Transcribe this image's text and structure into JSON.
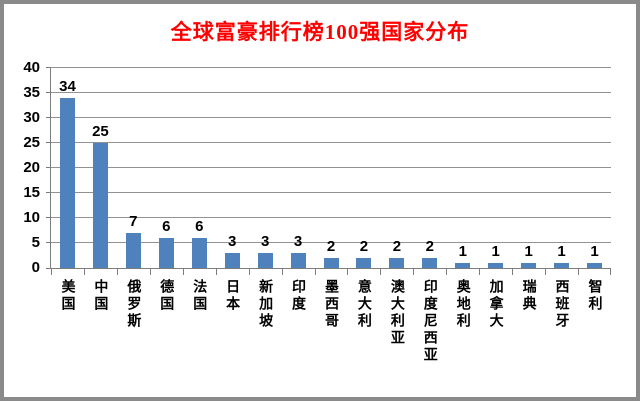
{
  "chart_data": {
    "type": "bar",
    "title": "全球富豪排行榜100强国家分布",
    "title_color": "#FF0000",
    "bar_color": "#4F81BD",
    "categories": [
      "美国",
      "中国",
      "俄罗斯",
      "德国",
      "法国",
      "日本",
      "新加坡",
      "印度",
      "墨西哥",
      "意大利",
      "澳大利亚",
      "印度尼西亚",
      "奥地利",
      "加拿大",
      "瑞典",
      "西班牙",
      "智利"
    ],
    "values": [
      34,
      25,
      7,
      6,
      6,
      3,
      3,
      3,
      2,
      2,
      2,
      2,
      1,
      1,
      1,
      1,
      1
    ],
    "xlabel": "",
    "ylabel": "",
    "ylim": [
      0,
      40
    ],
    "yticks": [
      0,
      5,
      10,
      15,
      20,
      25,
      30,
      35,
      40
    ],
    "grid": true,
    "legend": "none",
    "data_labels": true,
    "frame_color": "#8a8a8a",
    "gridline_color": "#929292",
    "axis_color": "#7d7d7d"
  }
}
